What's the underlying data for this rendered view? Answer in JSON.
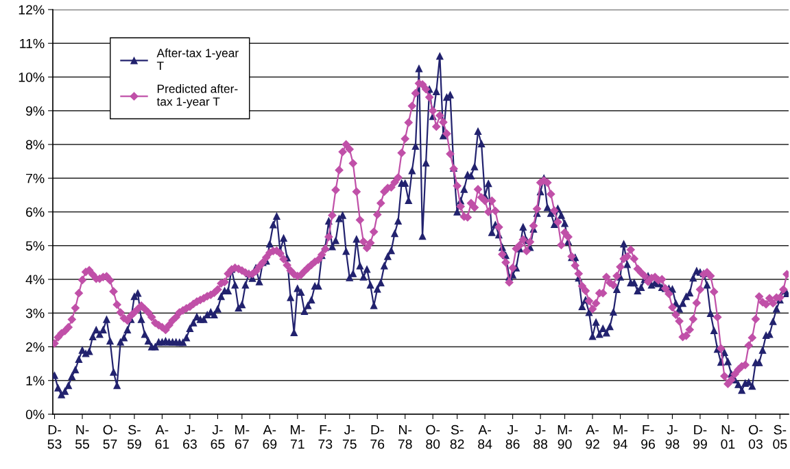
{
  "chart_data": {
    "type": "line",
    "categories": [
      "D-\n53",
      null,
      null,
      null,
      null,
      null,
      null,
      null,
      "N-\n55",
      null,
      null,
      null,
      null,
      null,
      null,
      null,
      "O-\n57",
      null,
      null,
      null,
      null,
      null,
      null,
      "S-\n59",
      null,
      null,
      null,
      null,
      null,
      null,
      null,
      "A-\n61",
      null,
      null,
      null,
      null,
      null,
      null,
      null,
      "J-\n63",
      null,
      null,
      null,
      null,
      null,
      null,
      null,
      "J-\n65",
      null,
      null,
      null,
      null,
      null,
      null,
      "M-\n67",
      null,
      null,
      null,
      null,
      null,
      null,
      null,
      "A-\n69",
      null,
      null,
      null,
      null,
      null,
      null,
      null,
      "M-\n71",
      null,
      null,
      null,
      null,
      null,
      null,
      null,
      "F-\n73",
      null,
      null,
      null,
      null,
      null,
      null,
      "J-\n75",
      null,
      null,
      null,
      null,
      null,
      null,
      null,
      "D-\n76",
      null,
      null,
      null,
      null,
      null,
      null,
      null,
      "N-\n78",
      null,
      null,
      null,
      null,
      null,
      null,
      null,
      "O-\n80",
      null,
      null,
      null,
      null,
      null,
      null,
      "S-\n82",
      null,
      null,
      null,
      null,
      null,
      null,
      null,
      "A-\n84",
      null,
      null,
      null,
      null,
      null,
      null,
      null,
      "J-\n86",
      null,
      null,
      null,
      null,
      null,
      null,
      null,
      "J-\n88",
      null,
      null,
      null,
      null,
      null,
      null,
      "M-\n90",
      null,
      null,
      null,
      null,
      null,
      null,
      null,
      "A-\n92",
      null,
      null,
      null,
      null,
      null,
      null,
      null,
      "M-\n94",
      null,
      null,
      null,
      null,
      null,
      null,
      null,
      "F-\n96",
      null,
      null,
      null,
      null,
      null,
      null,
      "J-\n98",
      null,
      null,
      null,
      null,
      null,
      null,
      null,
      "D-\n99",
      null,
      null,
      null,
      null,
      null,
      null,
      null,
      "N-\n01",
      null,
      null,
      null,
      null,
      null,
      null,
      null,
      "O-\n03",
      null,
      null,
      null,
      null,
      null,
      null,
      "S-\n05",
      null,
      null
    ],
    "series": [
      {
        "name": "After-tax 1-year\nT",
        "color": "#22226e",
        "marker": "triangle",
        "values": [
          1.15,
          0.78,
          0.58,
          0.68,
          0.85,
          1.12,
          1.32,
          1.63,
          1.9,
          1.8,
          1.86,
          2.3,
          2.5,
          2.37,
          2.5,
          2.81,
          2.17,
          1.25,
          0.85,
          2.14,
          2.27,
          2.5,
          2.81,
          3.49,
          3.59,
          2.81,
          2.37,
          2.17,
          2.0,
          2.0,
          2.14,
          2.14,
          2.17,
          2.14,
          2.14,
          2.14,
          2.13,
          2.13,
          2.27,
          2.54,
          2.71,
          2.89,
          2.81,
          2.81,
          2.95,
          3.03,
          2.95,
          3.12,
          3.49,
          3.66,
          3.66,
          4.3,
          3.83,
          3.15,
          3.25,
          3.83,
          4.17,
          4.03,
          4.34,
          3.93,
          4.5,
          4.54,
          5.05,
          5.62,
          5.87,
          4.84,
          5.22,
          4.64,
          3.46,
          2.42,
          3.73,
          3.62,
          3.05,
          3.22,
          3.39,
          3.8,
          3.8,
          4.71,
          4.95,
          5.73,
          4.97,
          5.15,
          5.8,
          5.9,
          4.83,
          4.05,
          4.17,
          5.19,
          4.4,
          4.07,
          4.3,
          3.83,
          3.22,
          3.71,
          3.9,
          4.4,
          4.68,
          4.85,
          5.36,
          5.73,
          6.85,
          6.85,
          6.34,
          7.22,
          7.95,
          10.25,
          5.28,
          7.45,
          9.64,
          8.83,
          9.57,
          10.62,
          8.26,
          9.4,
          9.47,
          7.3,
          6.0,
          6.33,
          6.67,
          7.1,
          7.07,
          7.34,
          8.39,
          8.02,
          6.47,
          6.84,
          5.39,
          5.62,
          5.32,
          4.95,
          4.71,
          4.07,
          4.13,
          4.34,
          4.91,
          5.55,
          5.15,
          4.95,
          5.49,
          5.96,
          6.6,
          7.0,
          6.13,
          5.96,
          5.63,
          6.1,
          5.9,
          5.66,
          5.12,
          4.65,
          4.65,
          4.04,
          3.19,
          3.39,
          3.02,
          2.31,
          2.73,
          2.37,
          2.54,
          2.41,
          2.6,
          3.03,
          3.7,
          4.07,
          5.05,
          4.44,
          3.9,
          3.9,
          3.66,
          3.76,
          4.0,
          4.1,
          3.83,
          3.9,
          3.87,
          3.76,
          3.73,
          3.73,
          3.71,
          3.29,
          3.12,
          3.29,
          3.49,
          3.6,
          4.04,
          4.25,
          4.21,
          4.17,
          3.83,
          2.99,
          2.48,
          1.93,
          1.54,
          1.83,
          1.56,
          1.19,
          1.02,
          0.88,
          0.71,
          0.92,
          0.95,
          0.83,
          1.53,
          1.53,
          1.9,
          2.34,
          2.37,
          2.75,
          3.12,
          3.39,
          3.66,
          3.58
        ]
      },
      {
        "name": "Predicted after-\ntax 1-year T",
        "color": "#c050a8",
        "marker": "diamond",
        "values": [
          2.1,
          2.28,
          2.4,
          2.47,
          2.58,
          2.81,
          3.15,
          3.59,
          3.98,
          4.22,
          4.27,
          4.14,
          4.02,
          4.02,
          4.07,
          4.09,
          3.97,
          3.64,
          3.25,
          3.02,
          2.85,
          2.78,
          2.92,
          3.02,
          3.12,
          3.22,
          3.12,
          3.02,
          2.88,
          2.71,
          2.64,
          2.58,
          2.5,
          2.64,
          2.78,
          2.88,
          3.02,
          3.08,
          3.14,
          3.19,
          3.27,
          3.34,
          3.39,
          3.44,
          3.5,
          3.54,
          3.6,
          3.7,
          3.88,
          3.92,
          4.17,
          4.29,
          4.34,
          4.31,
          4.26,
          4.2,
          4.15,
          4.16,
          4.24,
          4.38,
          4.5,
          4.65,
          4.79,
          4.84,
          4.85,
          4.77,
          4.6,
          4.42,
          4.26,
          4.15,
          4.1,
          4.13,
          4.24,
          4.34,
          4.43,
          4.52,
          4.58,
          4.73,
          4.9,
          5.26,
          5.9,
          6.65,
          7.24,
          7.78,
          8.0,
          7.86,
          7.44,
          6.6,
          5.76,
          5.12,
          4.93,
          5.08,
          5.41,
          5.92,
          6.26,
          6.6,
          6.71,
          6.73,
          6.88,
          7.02,
          7.75,
          8.17,
          8.65,
          9.14,
          9.52,
          9.81,
          9.78,
          9.64,
          9.4,
          9.0,
          8.53,
          8.86,
          8.66,
          8.32,
          7.72,
          7.28,
          6.77,
          6.16,
          5.86,
          5.84,
          6.26,
          6.13,
          6.67,
          6.43,
          6.33,
          6.0,
          6.33,
          6.03,
          5.55,
          4.74,
          4.5,
          3.91,
          4.34,
          4.91,
          5.01,
          5.18,
          4.84,
          5.11,
          5.59,
          6.09,
          6.87,
          6.93,
          6.87,
          6.53,
          6.04,
          5.7,
          5.02,
          5.39,
          5.26,
          4.68,
          4.41,
          4.17,
          3.8,
          3.66,
          3.36,
          3.12,
          3.29,
          3.59,
          3.59,
          4.07,
          3.9,
          3.83,
          4.1,
          4.37,
          4.61,
          4.68,
          4.88,
          4.61,
          4.31,
          4.2,
          4.1,
          3.93,
          4.04,
          4.07,
          3.97,
          4.0,
          3.73,
          3.57,
          3.17,
          2.95,
          2.76,
          2.29,
          2.33,
          2.51,
          2.82,
          3.3,
          3.7,
          4.15,
          4.21,
          4.1,
          3.63,
          2.88,
          1.95,
          1.13,
          0.9,
          1.02,
          1.19,
          1.32,
          1.42,
          1.46,
          2.04,
          2.27,
          2.82,
          3.49,
          3.32,
          3.26,
          3.44,
          3.29,
          3.46,
          3.46,
          3.7,
          4.15
        ]
      }
    ],
    "ylim": [
      0,
      12
    ],
    "yticks": [
      {
        "value": 0,
        "label": "0%"
      },
      {
        "value": 1,
        "label": "1%"
      },
      {
        "value": 2,
        "label": "2%"
      },
      {
        "value": 3,
        "label": "3%"
      },
      {
        "value": 4,
        "label": "4%"
      },
      {
        "value": 5,
        "label": "5%"
      },
      {
        "value": 6,
        "label": "6%"
      },
      {
        "value": 7,
        "label": "7%"
      },
      {
        "value": 8,
        "label": "8%"
      },
      {
        "value": 9,
        "label": "9%"
      },
      {
        "value": 10,
        "label": "10%"
      },
      {
        "value": 11,
        "label": "11%"
      },
      {
        "value": 12,
        "label": "12%"
      }
    ],
    "grid": "y",
    "legend": "top left",
    "line_style": "solid"
  }
}
